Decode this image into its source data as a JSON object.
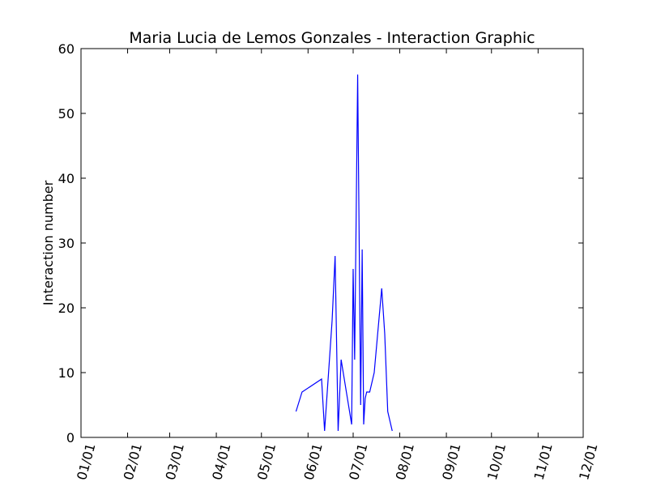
{
  "chart_data": {
    "type": "line",
    "title": "Maria Lucia de Lemos Gonzales - Interaction Graphic",
    "xlabel": "",
    "ylabel": "Interaction number",
    "xlim": [
      "01/01",
      "12/01"
    ],
    "ylim": [
      0,
      60
    ],
    "grid": false,
    "x_ticks": [
      "01/01",
      "02/01",
      "03/01",
      "04/01",
      "05/01",
      "06/01",
      "07/01",
      "08/01",
      "09/01",
      "10/01",
      "11/01",
      "12/01"
    ],
    "y_ticks": [
      0,
      10,
      20,
      30,
      40,
      50,
      60
    ],
    "series": [
      {
        "color": "#0000ff",
        "x": [
          "05/24",
          "05/28",
          "06/10",
          "06/12",
          "06/17",
          "06/19",
          "06/21",
          "06/23",
          "06/30",
          "07/01",
          "07/02",
          "07/04",
          "07/06",
          "07/07",
          "07/08",
          "07/09",
          "07/10",
          "07/12",
          "07/15",
          "07/20",
          "07/22",
          "07/24",
          "07/27"
        ],
        "values": [
          4,
          7,
          9,
          1,
          18,
          28,
          1,
          12,
          2,
          26,
          12,
          56,
          5,
          29,
          2,
          6,
          7,
          7,
          10,
          23,
          16,
          4,
          1
        ]
      }
    ]
  }
}
